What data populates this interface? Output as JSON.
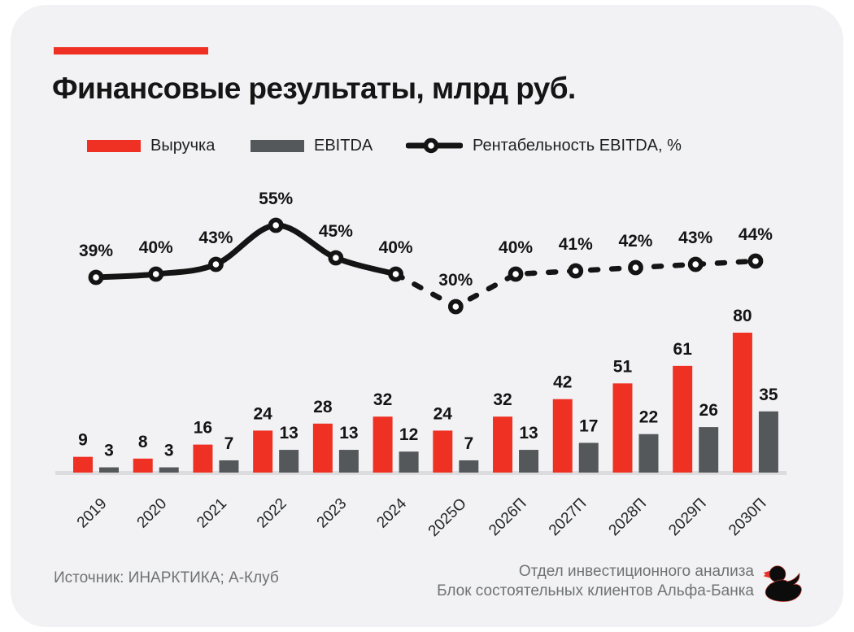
{
  "header": {
    "title": "Финансовые результаты, млрд руб."
  },
  "legend": {
    "revenue": "Выручка",
    "ebitda": "EBITDA",
    "margin": "Рентабельность EBITDA, %"
  },
  "colors": {
    "accent": "#EF3124",
    "revenue_bar": "#EF3124",
    "ebitda_bar": "#54585B",
    "margin_line": "#141414",
    "card_bg": "#F2F2F4",
    "axis_line": "#DCDCDE",
    "footer_text": "#6F7274",
    "label_text": "#141414"
  },
  "chart_data": {
    "type": "bar",
    "subtype": "grouped bars + line overlay",
    "title": "Финансовые результаты, млрд руб.",
    "xlabel": "",
    "ylabel": "млрд руб.",
    "legend_position": "top",
    "grid": false,
    "value_labels": true,
    "categories": [
      "2019",
      "2020",
      "2021",
      "2022",
      "2023",
      "2024",
      "2025О",
      "2026П",
      "2027П",
      "2028П",
      "2029П",
      "2030П"
    ],
    "series": [
      {
        "name": "Выручка",
        "type": "bar",
        "color": "#EF3124",
        "values": [
          9,
          8,
          16,
          24,
          28,
          32,
          24,
          32,
          42,
          51,
          61,
          80
        ]
      },
      {
        "name": "EBITDA",
        "type": "bar",
        "color": "#54585B",
        "values": [
          3,
          3,
          7,
          13,
          13,
          12,
          7,
          13,
          17,
          22,
          26,
          35
        ]
      },
      {
        "name": "Рентабельность EBITDA, %",
        "type": "line",
        "unit": "%",
        "color": "#141414",
        "marker": "open-circle",
        "values": [
          39,
          40,
          43,
          55,
          45,
          40,
          30,
          40,
          41,
          42,
          43,
          44
        ],
        "labels": [
          "39%",
          "40%",
          "43%",
          "55%",
          "45%",
          "40%",
          "30%",
          "40%",
          "41%",
          "42%",
          "43%",
          "44%"
        ],
        "line_style": "solid 2019–2024, dashed forecast 2024–2030П"
      }
    ]
  },
  "footer": {
    "source": "Источник: ИНАРКТИКА; А-Клуб",
    "dept_line1": "Отдел инвестиционного анализа",
    "dept_line2": "Блок состоятельных клиентов Альфа-Банка",
    "logo_icon": "rubber-duck-icon"
  }
}
